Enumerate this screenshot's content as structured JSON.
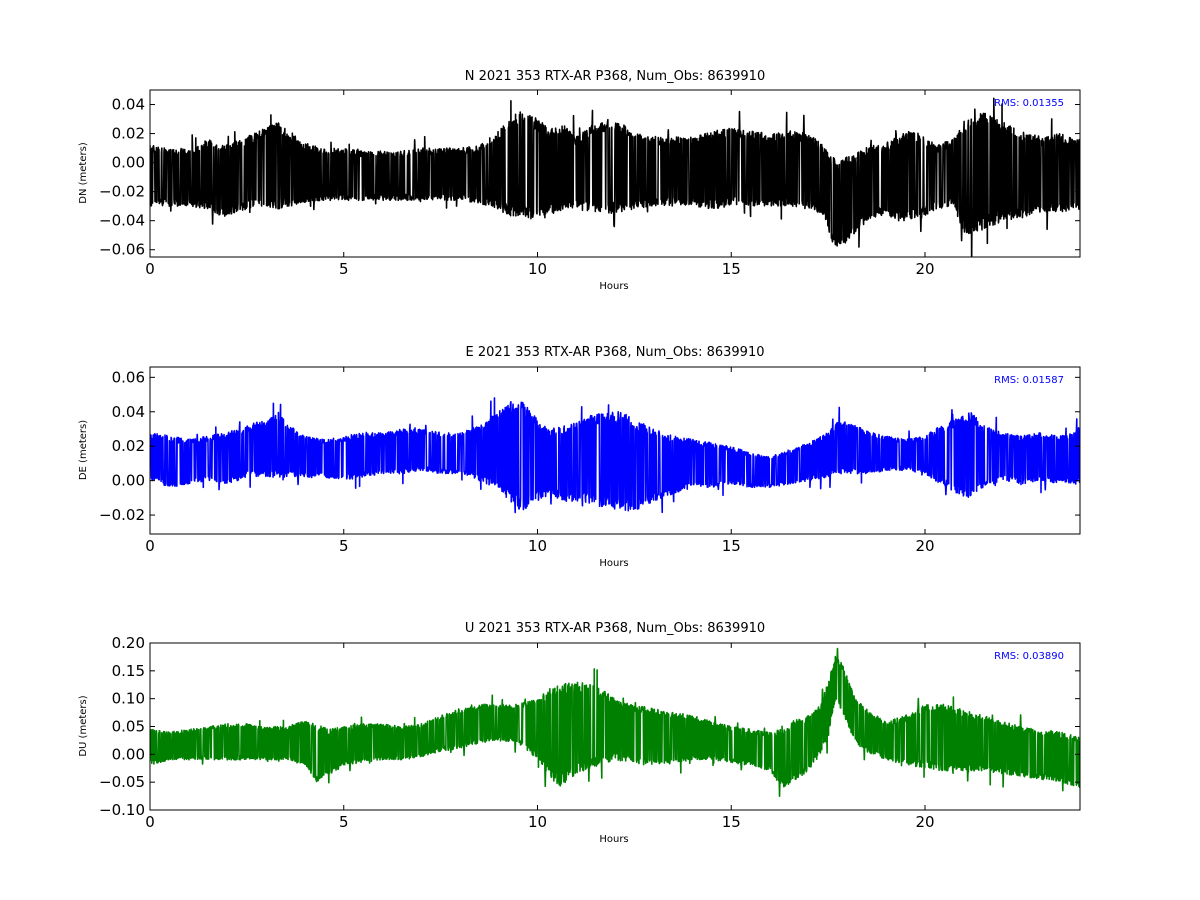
{
  "chart_data": [
    {
      "type": "line",
      "title": "N 2021 353 RTX-AR  P368, Num_Obs: 8639910",
      "xlabel": "Hours",
      "ylabel": "DN (meters)",
      "xlim": [
        0,
        24
      ],
      "ylim": [
        -0.065,
        0.05
      ],
      "xticks": [
        0,
        5,
        10,
        15,
        20
      ],
      "yticks": [
        -0.06,
        -0.04,
        -0.02,
        0.0,
        0.02,
        0.04
      ],
      "ytick_labels": [
        "−0.06",
        "−0.04",
        "−0.02",
        "0.00",
        "0.02",
        "0.04"
      ],
      "color": "#000000",
      "annotation": "RMS:  0.01355",
      "annotation_color": "#0000ff",
      "legend": "none",
      "grid": false,
      "envelope": {
        "x": [
          0,
          0.5,
          1,
          1.5,
          1.9,
          2.5,
          3,
          3.3,
          3.6,
          4,
          4.5,
          5,
          5.5,
          6,
          6.5,
          7,
          7.5,
          8,
          8.5,
          9,
          9.3,
          9.6,
          10,
          10.3,
          10.7,
          11,
          11.4,
          11.8,
          12.2,
          12.5,
          13,
          13.5,
          14,
          14.5,
          15,
          15.5,
          16,
          16.5,
          17,
          17.4,
          17.6,
          17.8,
          18.2,
          18.6,
          19,
          19.3,
          19.6,
          19.9,
          20.3,
          20.7,
          21,
          21.3,
          21.6,
          22,
          22.5,
          23,
          23.5,
          24
        ],
        "upper": [
          0.012,
          0.01,
          0.01,
          0.016,
          0.012,
          0.018,
          0.024,
          0.028,
          0.022,
          0.014,
          0.01,
          0.01,
          0.008,
          0.008,
          0.008,
          0.01,
          0.01,
          0.01,
          0.012,
          0.022,
          0.032,
          0.036,
          0.03,
          0.024,
          0.026,
          0.018,
          0.026,
          0.03,
          0.028,
          0.02,
          0.018,
          0.018,
          0.018,
          0.022,
          0.024,
          0.022,
          0.02,
          0.022,
          0.02,
          0.012,
          0.004,
          0.002,
          0.006,
          0.012,
          0.014,
          0.018,
          0.022,
          0.02,
          0.012,
          0.016,
          0.03,
          0.034,
          0.034,
          0.028,
          0.022,
          0.018,
          0.02,
          0.016
        ],
        "lower": [
          -0.03,
          -0.03,
          -0.03,
          -0.032,
          -0.038,
          -0.032,
          -0.03,
          -0.032,
          -0.03,
          -0.028,
          -0.026,
          -0.026,
          -0.026,
          -0.026,
          -0.026,
          -0.026,
          -0.026,
          -0.026,
          -0.028,
          -0.032,
          -0.038,
          -0.036,
          -0.042,
          -0.036,
          -0.032,
          -0.032,
          -0.034,
          -0.036,
          -0.034,
          -0.032,
          -0.03,
          -0.03,
          -0.03,
          -0.032,
          -0.03,
          -0.03,
          -0.03,
          -0.03,
          -0.032,
          -0.036,
          -0.055,
          -0.06,
          -0.048,
          -0.038,
          -0.036,
          -0.04,
          -0.04,
          -0.038,
          -0.032,
          -0.03,
          -0.048,
          -0.05,
          -0.046,
          -0.04,
          -0.038,
          -0.034,
          -0.034,
          -0.032
        ]
      }
    },
    {
      "type": "line",
      "title": "E 2021 353 RTX-AR  P368, Num_Obs: 8639910",
      "xlabel": "Hours",
      "ylabel": "DE (meters)",
      "xlim": [
        0,
        24
      ],
      "ylim": [
        -0.031,
        0.066
      ],
      "xticks": [
        0,
        5,
        10,
        15,
        20
      ],
      "yticks": [
        -0.02,
        0.0,
        0.02,
        0.04,
        0.06
      ],
      "ytick_labels": [
        "−0.02",
        "0.00",
        "0.02",
        "0.04",
        "0.06"
      ],
      "color": "#0000ff",
      "annotation": "RMS:  0.01587",
      "annotation_color": "#0000ff",
      "legend": "none",
      "grid": false,
      "envelope": {
        "x": [
          0,
          0.5,
          1,
          1.5,
          2,
          2.5,
          3,
          3.3,
          3.6,
          4,
          4.5,
          5,
          5.5,
          6,
          6.5,
          7,
          7.5,
          8,
          8.5,
          9,
          9.3,
          9.6,
          10,
          10.3,
          10.7,
          11,
          11.4,
          11.8,
          12.2,
          12.5,
          13,
          13.5,
          14,
          14.5,
          15,
          15.5,
          16,
          16.5,
          17,
          17.5,
          17.8,
          18.2,
          18.6,
          19,
          19.5,
          20,
          20.4,
          20.8,
          21.2,
          21.5,
          22,
          22.5,
          23,
          23.5,
          24
        ],
        "upper": [
          0.028,
          0.026,
          0.024,
          0.026,
          0.028,
          0.032,
          0.036,
          0.04,
          0.032,
          0.026,
          0.024,
          0.026,
          0.028,
          0.028,
          0.03,
          0.03,
          0.028,
          0.028,
          0.032,
          0.04,
          0.046,
          0.046,
          0.036,
          0.03,
          0.032,
          0.034,
          0.038,
          0.04,
          0.04,
          0.036,
          0.03,
          0.026,
          0.024,
          0.022,
          0.02,
          0.016,
          0.014,
          0.018,
          0.022,
          0.028,
          0.036,
          0.032,
          0.028,
          0.026,
          0.024,
          0.026,
          0.032,
          0.036,
          0.04,
          0.032,
          0.028,
          0.026,
          0.028,
          0.026,
          0.03
        ],
        "lower": [
          0.0,
          -0.004,
          -0.002,
          0.0,
          -0.002,
          0.002,
          0.002,
          0.002,
          0.002,
          0.002,
          0.002,
          0.0,
          0.002,
          0.004,
          0.004,
          0.006,
          0.004,
          0.004,
          0.0,
          -0.006,
          -0.012,
          -0.018,
          -0.012,
          -0.008,
          -0.012,
          -0.012,
          -0.014,
          -0.016,
          -0.018,
          -0.018,
          -0.012,
          -0.008,
          -0.004,
          -0.004,
          -0.002,
          -0.004,
          -0.004,
          -0.002,
          0.0,
          0.002,
          0.004,
          0.004,
          0.004,
          0.006,
          0.006,
          0.004,
          -0.002,
          -0.008,
          -0.01,
          -0.004,
          0.0,
          -0.002,
          0.0,
          -0.002,
          -0.002
        ]
      }
    },
    {
      "type": "line",
      "title": "U 2021 353 RTX-AR  P368, Num_Obs: 8639910",
      "xlabel": "Hours",
      "ylabel": "DU (meters)",
      "xlim": [
        0,
        24
      ],
      "ylim": [
        -0.1,
        0.2
      ],
      "xticks": [
        0,
        5,
        10,
        15,
        20
      ],
      "yticks": [
        -0.1,
        -0.05,
        0.0,
        0.05,
        0.1,
        0.15,
        0.2
      ],
      "ytick_labels": [
        "−0.10",
        "−0.05",
        "0.00",
        "0.05",
        "0.10",
        "0.15",
        "0.20"
      ],
      "color": "#008000",
      "annotation": "RMS:  0.03890",
      "annotation_color": "#0000ff",
      "legend": "none",
      "grid": false,
      "envelope": {
        "x": [
          0,
          0.5,
          1,
          1.5,
          2,
          2.5,
          3,
          3.5,
          4,
          4.3,
          4.6,
          5,
          5.5,
          6,
          6.5,
          7,
          7.5,
          8,
          8.5,
          9,
          9.5,
          10,
          10.3,
          10.6,
          10.9,
          11.2,
          11.6,
          12,
          12.4,
          12.8,
          13.2,
          13.6,
          14,
          14.5,
          15,
          15.5,
          16,
          16.3,
          16.6,
          17,
          17.3,
          17.5,
          17.7,
          17.9,
          18.2,
          18.6,
          19,
          19.5,
          20,
          20.5,
          21,
          21.5,
          22,
          22.5,
          23,
          23.5,
          24
        ],
        "upper": [
          0.045,
          0.04,
          0.045,
          0.05,
          0.055,
          0.055,
          0.05,
          0.05,
          0.06,
          0.055,
          0.045,
          0.05,
          0.055,
          0.055,
          0.05,
          0.055,
          0.07,
          0.08,
          0.09,
          0.09,
          0.09,
          0.1,
          0.12,
          0.13,
          0.13,
          0.13,
          0.12,
          0.1,
          0.09,
          0.085,
          0.08,
          0.075,
          0.07,
          0.06,
          0.05,
          0.045,
          0.04,
          0.045,
          0.06,
          0.07,
          0.09,
          0.13,
          0.18,
          0.16,
          0.1,
          0.075,
          0.06,
          0.07,
          0.09,
          0.09,
          0.08,
          0.07,
          0.06,
          0.05,
          0.045,
          0.04,
          0.03
        ],
        "lower": [
          -0.02,
          -0.01,
          -0.01,
          -0.01,
          -0.01,
          -0.01,
          -0.01,
          -0.01,
          -0.02,
          -0.05,
          -0.04,
          -0.02,
          -0.015,
          -0.01,
          -0.01,
          -0.005,
          0.005,
          0.01,
          0.02,
          0.025,
          0.02,
          -0.01,
          -0.04,
          -0.06,
          -0.04,
          -0.03,
          -0.02,
          -0.01,
          -0.015,
          -0.02,
          -0.02,
          -0.015,
          -0.01,
          -0.01,
          -0.015,
          -0.02,
          -0.03,
          -0.06,
          -0.05,
          -0.03,
          0.0,
          0.03,
          0.1,
          0.07,
          0.02,
          0.0,
          -0.01,
          -0.02,
          -0.025,
          -0.03,
          -0.03,
          -0.03,
          -0.035,
          -0.04,
          -0.045,
          -0.05,
          -0.06
        ]
      }
    }
  ]
}
